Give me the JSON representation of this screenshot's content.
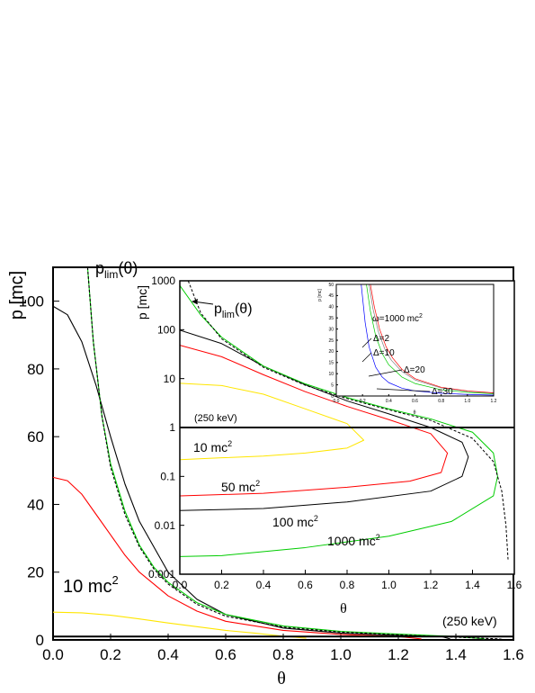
{
  "chart_data": [
    {
      "type": "line",
      "xlabel": "θ",
      "ylabel": "p [mc]",
      "xlim": [
        0,
        1.6
      ],
      "ylim": [
        0,
        110
      ],
      "x_ticks": [
        "0.0",
        "0.2",
        "0.4",
        "0.6",
        "0.8",
        "1.0",
        "1.2",
        "1.4",
        "1.6"
      ],
      "y_ticks": [
        "0",
        "20",
        "40",
        "60",
        "80",
        "100"
      ],
      "annotations": {
        "plim_main": "p",
        "plim_sub": "lim",
        "plim_arg": "(θ)",
        "label_10": "10 mc",
        "label_10_sup": "2",
        "label_250": "(250 keV)"
      },
      "series": [
        {
          "color": "#000000",
          "x": [
            0,
            0.05,
            0.1,
            0.15,
            0.2,
            0.25,
            0.3,
            0.4,
            0.5,
            0.6,
            0.8,
            1.0,
            1.2,
            1.35,
            1.38
          ],
          "y": [
            98.5,
            96,
            88,
            75,
            60,
            46,
            35,
            20,
            12,
            7.5,
            3.5,
            2,
            1.3,
            1.0,
            0.3
          ]
        },
        {
          "color": "#ff0000",
          "x": [
            0,
            0.05,
            0.1,
            0.15,
            0.2,
            0.25,
            0.3,
            0.4,
            0.5,
            0.6,
            0.8,
            1.0,
            1.2,
            1.28
          ],
          "y": [
            48,
            47,
            43,
            37,
            31,
            25,
            20,
            13,
            8.5,
            5.5,
            2.8,
            1.6,
            1.0,
            0.3
          ]
        },
        {
          "color": "#00cc00",
          "x": [
            0.12,
            0.14,
            0.17,
            0.2,
            0.25,
            0.3,
            0.35,
            0.4,
            0.5,
            0.6,
            0.8,
            1.0,
            1.2,
            1.4,
            1.5
          ],
          "y": [
            110,
            88,
            66,
            52,
            38,
            28,
            21.5,
            17,
            11,
            7.5,
            4.1,
            2.5,
            1.7,
            1.0,
            0.3
          ]
        },
        {
          "color": "#000000",
          "dashed": true,
          "x": [
            0.12,
            0.14,
            0.17,
            0.2,
            0.25,
            0.3,
            0.35,
            0.4,
            0.5,
            0.6,
            0.8,
            1.0,
            1.2,
            1.4,
            1.55,
            1.57
          ],
          "y": [
            110,
            88,
            66,
            51,
            37,
            27.5,
            21,
            16.5,
            10.5,
            7,
            3.8,
            2.3,
            1.5,
            0.8,
            0.3,
            0
          ]
        },
        {
          "color": "#ffe600",
          "x": [
            0,
            0.1,
            0.2,
            0.3,
            0.4,
            0.5,
            0.6,
            0.7,
            0.8,
            0.88
          ],
          "y": [
            8.2,
            8.0,
            7.3,
            6.2,
            5.0,
            3.9,
            2.8,
            2.0,
            1.1,
            0.5
          ]
        },
        {
          "color": "#000000",
          "x": [
            0,
            1.6
          ],
          "y": [
            1,
            1
          ]
        }
      ]
    },
    {
      "type": "line",
      "xlabel": "θ",
      "ylabel": "p [mc]",
      "xlim": [
        0,
        1.6
      ],
      "ylim": [
        0.001,
        1000
      ],
      "yscale": "log",
      "x_ticks": [
        "0.0",
        "0.2",
        "0.4",
        "0.6",
        "0.8",
        "1.0",
        "1.2",
        "1.4",
        "1.6"
      ],
      "y_ticks": [
        "0.001",
        "0.01",
        "0.1",
        "1",
        "10",
        "100",
        "1000"
      ],
      "annotations": {
        "plim_main": "p",
        "plim_sub": "lim",
        "plim_arg": "(θ)",
        "label_250": "(250 keV)",
        "label_10": "10 mc",
        "label_50": "50 mc",
        "label_100": "100 mc",
        "label_1000": "1000 mc",
        "sup": "2"
      },
      "series": [
        {
          "color": "#ffe600",
          "x": [
            0,
            0.2,
            0.4,
            0.6,
            0.8,
            0.88,
            0.8,
            0.6,
            0.4,
            0.2,
            0
          ],
          "y": [
            8,
            7.2,
            4.8,
            2.4,
            1.2,
            0.55,
            0.38,
            0.3,
            0.26,
            0.24,
            0.22
          ]
        },
        {
          "color": "#ff0000",
          "x": [
            0,
            0.2,
            0.4,
            0.6,
            0.8,
            1.0,
            1.2,
            1.28,
            1.25,
            1.1,
            0.8,
            0.4,
            0
          ],
          "y": [
            48,
            28,
            12,
            5.4,
            2.7,
            1.45,
            0.75,
            0.3,
            0.12,
            0.08,
            0.06,
            0.045,
            0.04
          ]
        },
        {
          "color": "#000000",
          "x": [
            0,
            0.2,
            0.4,
            0.6,
            0.8,
            1.0,
            1.2,
            1.35,
            1.38,
            1.35,
            1.2,
            0.8,
            0.4,
            0
          ],
          "y": [
            98,
            52,
            18,
            7.5,
            3.5,
            1.9,
            1.0,
            0.5,
            0.25,
            0.1,
            0.05,
            0.03,
            0.022,
            0.02
          ]
        },
        {
          "color": "#00cc00",
          "x": [
            0,
            0.1,
            0.2,
            0.4,
            0.6,
            0.8,
            1.0,
            1.2,
            1.4,
            1.5,
            1.52,
            1.5,
            1.3,
            1.0,
            0.6,
            0.2,
            0
          ],
          "y": [
            800,
            200,
            70,
            18,
            7.8,
            4.1,
            2.4,
            1.5,
            0.8,
            0.3,
            0.1,
            0.04,
            0.012,
            0.006,
            0.0035,
            0.0024,
            0.0023
          ]
        },
        {
          "color": "#000000",
          "dashed": true,
          "x": [
            0.04,
            0.1,
            0.2,
            0.4,
            0.6,
            0.8,
            1.0,
            1.2,
            1.4,
            1.5,
            1.54,
            1.56,
            1.57
          ],
          "y": [
            1000,
            220,
            65,
            17,
            7.3,
            3.9,
            2.3,
            1.4,
            0.6,
            0.2,
            0.05,
            0.01,
            0.002
          ]
        },
        {
          "color": "#000000",
          "x": [
            0,
            1.6
          ],
          "y": [
            1,
            1
          ]
        }
      ]
    },
    {
      "type": "line",
      "xlabel": "θ",
      "ylabel": "p [mc]",
      "xlim": [
        0,
        1.2
      ],
      "ylim": [
        0,
        50
      ],
      "x_ticks": [
        "0.0",
        "0.2",
        "0.4",
        "0.6",
        "0.8",
        "1.0",
        "1.2"
      ],
      "y_ticks": [
        "0",
        "5",
        "10",
        "15",
        "20",
        "25",
        "30",
        "35",
        "40",
        "45",
        "50"
      ],
      "annotations": {
        "omega": "ω=1000 mc",
        "omega_sup": "2",
        "d2": "Δ=2",
        "d10": "Δ=10",
        "d20": "Δ=20",
        "d30": "Δ=30"
      },
      "series": [
        {
          "color": "#0000ff",
          "x": [
            0.19,
            0.22,
            0.25,
            0.3,
            0.35,
            0.4,
            0.5,
            0.6,
            0.8,
            1.0,
            1.2
          ],
          "y": [
            50,
            33,
            22,
            13,
            8.5,
            6,
            3.5,
            2.3,
            1.2,
            0.7,
            0.4
          ]
        },
        {
          "color": "#00cc00",
          "x": [
            0.23,
            0.26,
            0.3,
            0.35,
            0.4,
            0.5,
            0.6,
            0.8,
            1.0,
            1.2
          ],
          "y": [
            50,
            38,
            27,
            19,
            14,
            8.5,
            5.6,
            2.8,
            1.6,
            1.0
          ]
        },
        {
          "color": "#808080",
          "x": [
            0.25,
            0.28,
            0.32,
            0.37,
            0.42,
            0.5,
            0.6,
            0.8,
            1.0,
            1.2
          ],
          "y": [
            50,
            39,
            29,
            21,
            16,
            11,
            7.2,
            3.6,
            2.1,
            1.3
          ]
        },
        {
          "color": "#ff0000",
          "x": [
            0.26,
            0.29,
            0.33,
            0.38,
            0.43,
            0.5,
            0.6,
            0.8,
            1.0,
            1.2
          ],
          "y": [
            50,
            40,
            30,
            22,
            17,
            12,
            7.8,
            3.9,
            2.3,
            1.4
          ]
        }
      ]
    }
  ]
}
